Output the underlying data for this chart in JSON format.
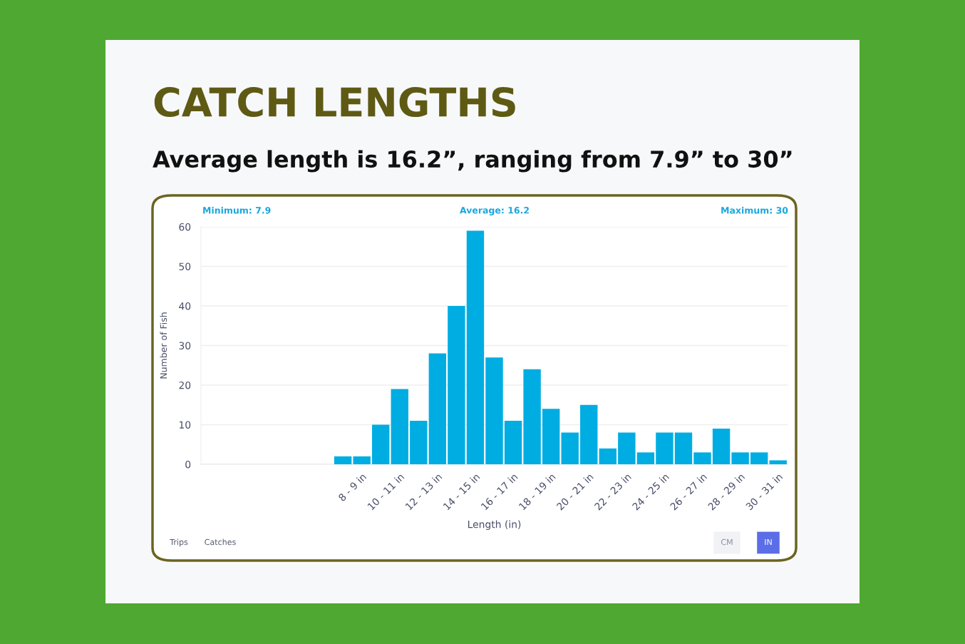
{
  "chart_data": {
    "type": "bar",
    "title": "CATCH LENGTHS",
    "subtitle": "Average length is 16.2”, ranging from 7.9” to 30”",
    "xlabel": "Length (in)",
    "ylabel": "Number of Fish",
    "categories": [
      null,
      null,
      null,
      null,
      null,
      null,
      null,
      null,
      "8 - 9 in",
      null,
      "10 - 11 in",
      null,
      "12 - 13 in",
      null,
      "14 - 15 in",
      null,
      "16 - 17 in",
      null,
      "18 - 19 in",
      null,
      "20 - 21 in",
      null,
      "22 - 23 in",
      null,
      "24 - 25 in",
      null,
      "26 - 27 in",
      null,
      "28 - 29 in",
      null,
      "30 - 31 in"
    ],
    "values": [
      null,
      null,
      null,
      null,
      null,
      null,
      null,
      2,
      2,
      10,
      19,
      11,
      28,
      40,
      59,
      27,
      11,
      24,
      14,
      8,
      15,
      4,
      8,
      3,
      8,
      8,
      3,
      9,
      3,
      3,
      1
    ],
    "color": "#00ade2",
    "ylim": [
      0,
      60
    ],
    "yticks": [
      0,
      10,
      20,
      30,
      40,
      50,
      60
    ],
    "grid": "y",
    "annotations": [
      "Minimum: 7.9",
      "Average: 16.2",
      "Maximum: 30",
      "Trips",
      "Catches",
      "CM",
      "IN"
    ]
  }
}
